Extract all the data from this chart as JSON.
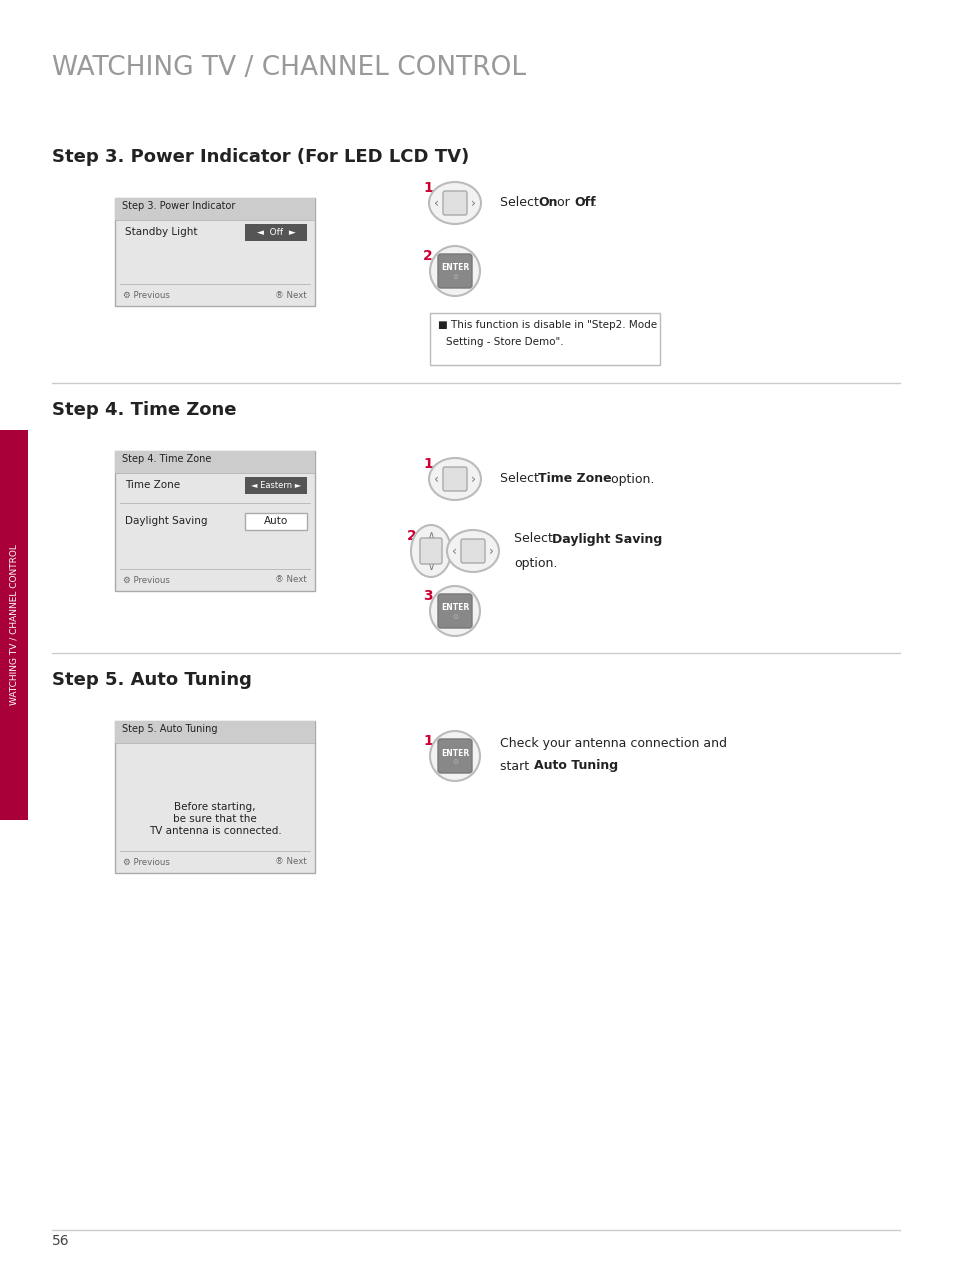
{
  "title": "WATCHING TV / CHANNEL CONTROL",
  "title_color": "#999999",
  "page_bg": "#ffffff",
  "page_num": "56",
  "sidebar_color": "#aa003a",
  "sidebar_text": "WATCHING TV / CHANNEL CONTROL",
  "red": "#cc0033",
  "dark_btn": "#555555",
  "screen_bg": "#e6e6e6",
  "screen_header": "#cccccc",
  "screen_border": "#aaaaaa",
  "divider_color": "#cccccc",
  "text_dark": "#222222",
  "text_nav": "#666666",
  "step3_heading": "Step 3. Power Indicator (For LED LCD TV)",
  "step3_title": "Step 3. Power Indicator",
  "step3_label1": "Standby Light",
  "step3_prev": "Previous",
  "step3_next": "Next",
  "step4_heading": "Step 4. Time Zone",
  "step4_title": "Step 4. Time Zone",
  "step4_label1": "Time Zone",
  "step4_val1": "Eastern",
  "step4_label2": "Daylight Saving",
  "step4_val2": "Auto",
  "step4_prev": "Previous",
  "step4_next": "Next",
  "step5_heading": "Step 5. Auto Tuning",
  "step5_title": "Step 5. Auto Tuning",
  "step5_body": "Before starting,\nbe sure that the\nTV antenna is connected.",
  "step5_prev": "Previous",
  "step5_next": "Next"
}
